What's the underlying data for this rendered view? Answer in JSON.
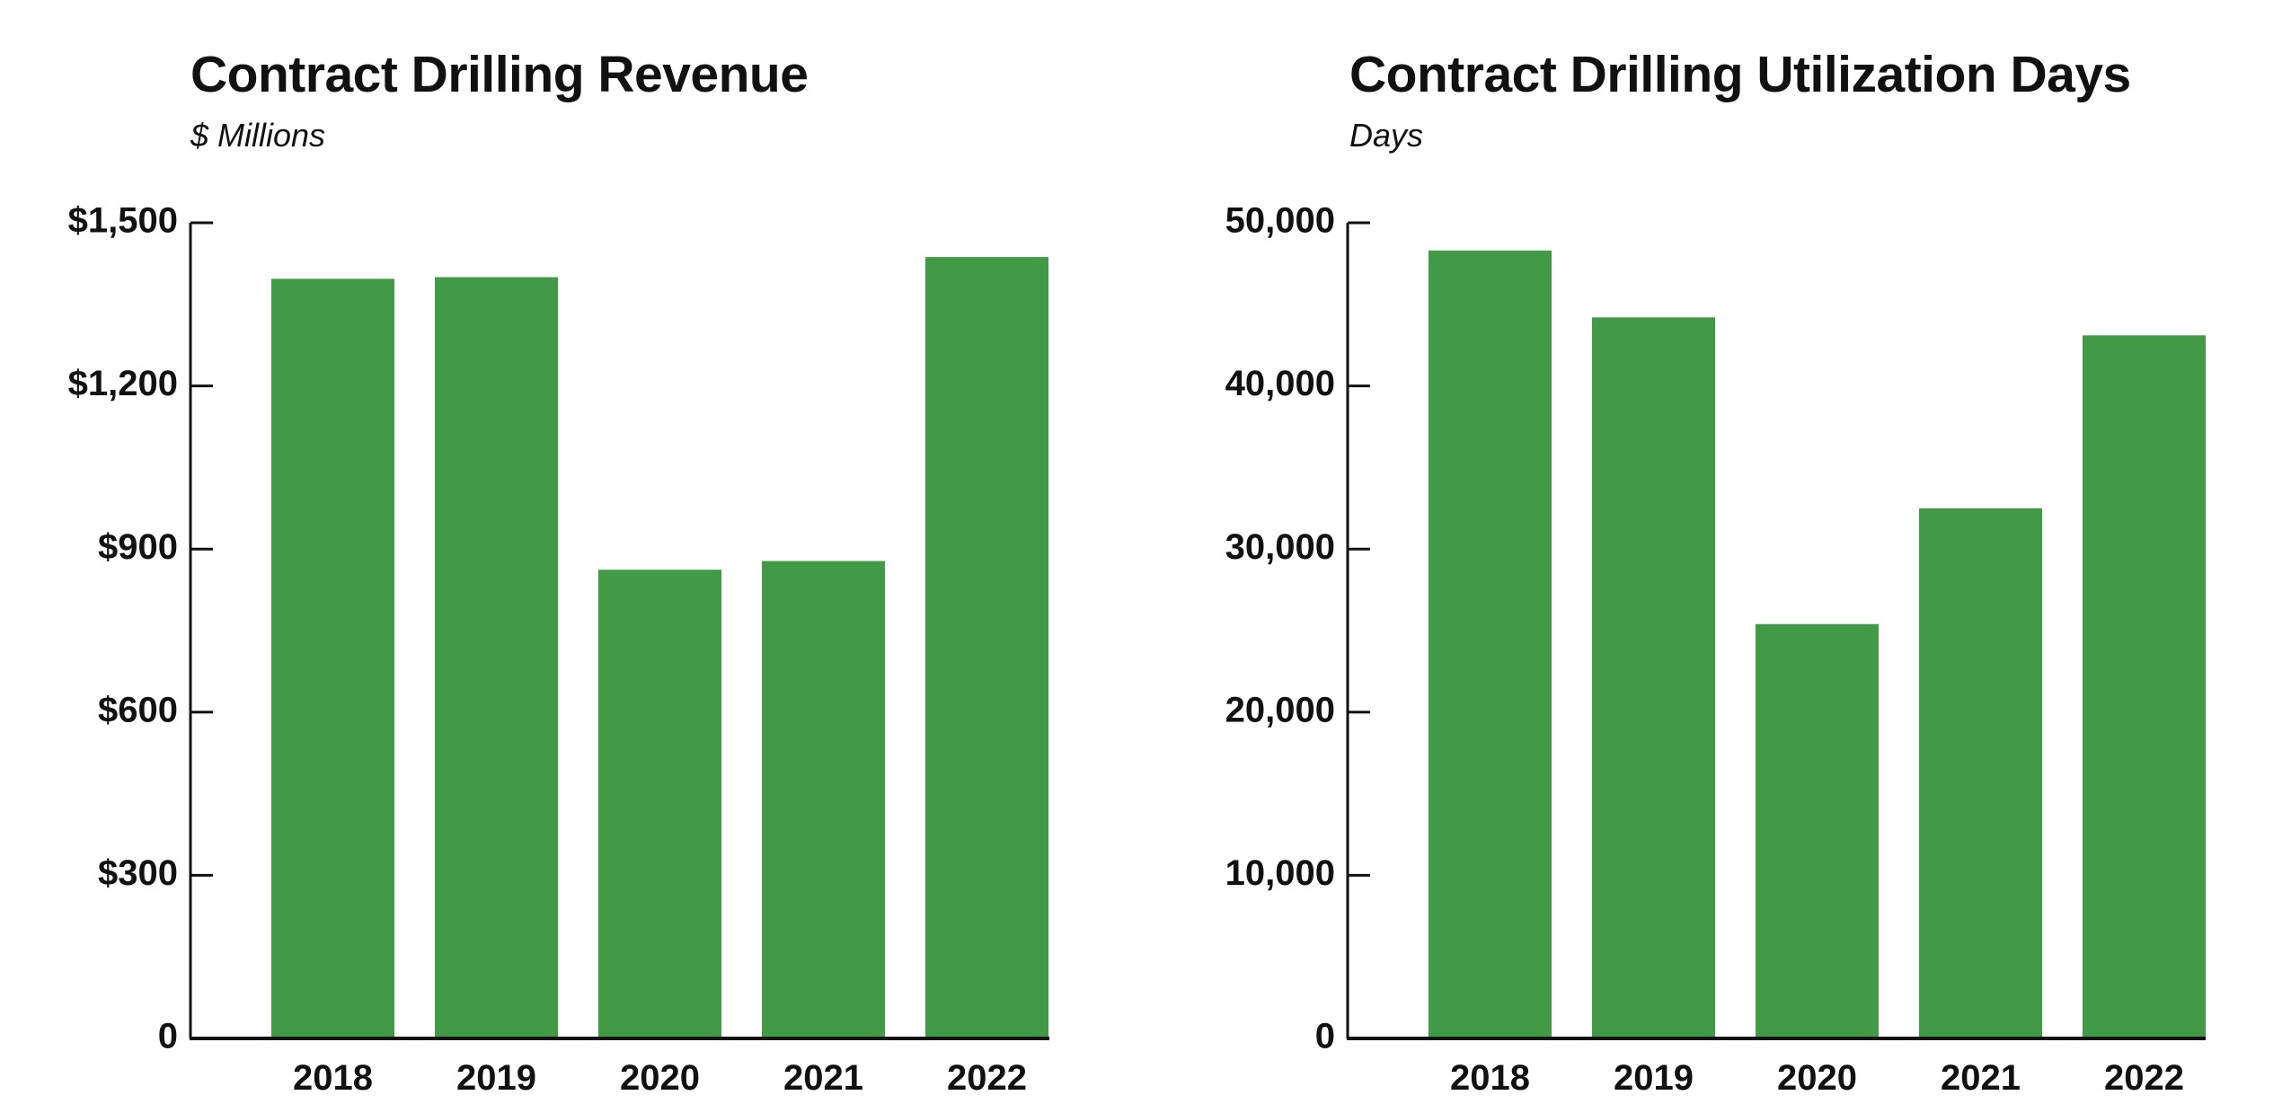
{
  "colors": {
    "bar": "#439A46",
    "axis": "#111111",
    "background": "#FFFFFF"
  },
  "chart_data": [
    {
      "type": "bar",
      "title": "Contract Drilling Revenue",
      "subtitle": "$ Millions",
      "xlabel": "",
      "ylabel": "$ Millions",
      "categories": [
        "2018",
        "2019",
        "2020",
        "2021",
        "2022"
      ],
      "values": [
        1397,
        1400,
        862,
        878,
        1437
      ],
      "ylim": [
        0,
        1500
      ],
      "yticks": [
        0,
        300,
        600,
        900,
        1200,
        1500
      ],
      "ytick_labels": [
        "0",
        "$300",
        "$600",
        "$900",
        "$1,200",
        "$1,500"
      ],
      "grid": false,
      "legend": "none"
    },
    {
      "type": "bar",
      "title": "Contract Drilling Utilization Days",
      "subtitle": "Days",
      "xlabel": "",
      "ylabel": "Days",
      "categories": [
        "2018",
        "2019",
        "2020",
        "2021",
        "2022"
      ],
      "values": [
        48300,
        44200,
        25400,
        32500,
        43100
      ],
      "ylim": [
        0,
        50000
      ],
      "yticks": [
        0,
        10000,
        20000,
        30000,
        40000,
        50000
      ],
      "ytick_labels": [
        "0",
        "10,000",
        "20,000",
        "30,000",
        "40,000",
        "50,000"
      ],
      "grid": false,
      "legend": "none"
    }
  ]
}
